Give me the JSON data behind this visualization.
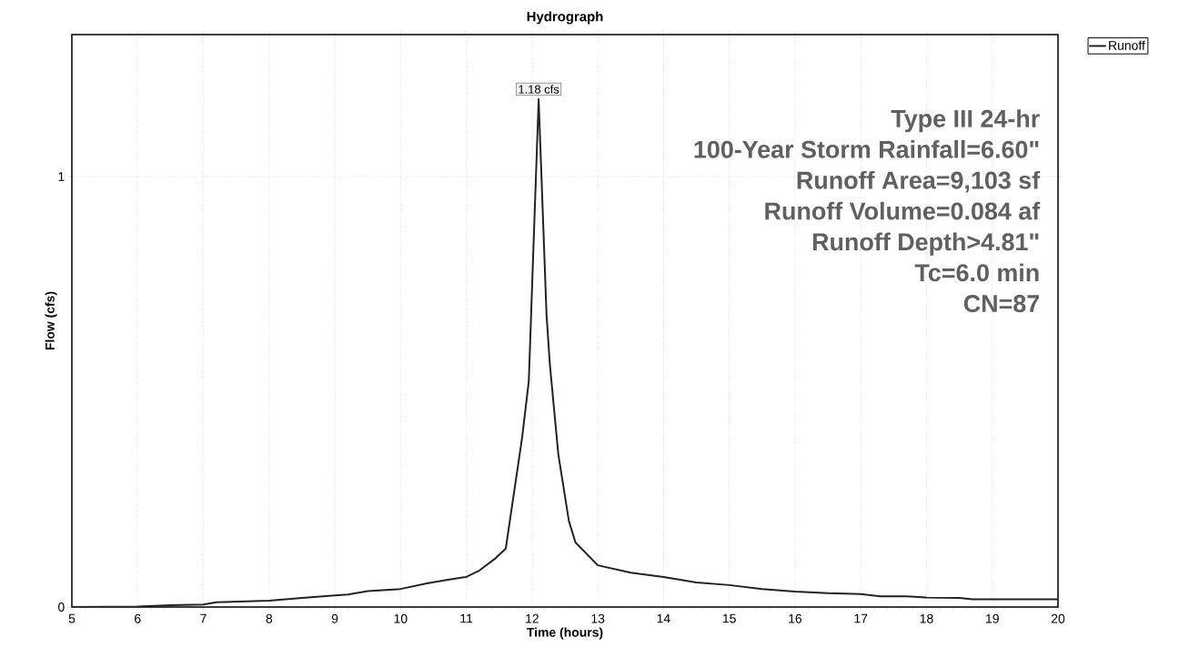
{
  "chart_data": {
    "type": "line",
    "title": "Hydrograph",
    "xlabel": "Time  (hours)",
    "ylabel": "Flow  (cfs)",
    "x": [
      5,
      6,
      6.5,
      7,
      7.2,
      8,
      8.5,
      9,
      9.2,
      9.5,
      10,
      10.4,
      10.7,
      11,
      11.2,
      11.45,
      11.6,
      11.85,
      11.95,
      12.1,
      12.22,
      12.27,
      12.4,
      12.56,
      12.66,
      13,
      13.5,
      14,
      14.5,
      15,
      15.5,
      16,
      16.5,
      17,
      17.3,
      17.7,
      18,
      18.5,
      18.7,
      20
    ],
    "series": [
      {
        "name": "Runoff",
        "color": "#222222",
        "values": [
          0,
          0.001,
          0.004,
          0.006,
          0.011,
          0.015,
          0.021,
          0.027,
          0.029,
          0.037,
          0.042,
          0.055,
          0.063,
          0.07,
          0.085,
          0.114,
          0.136,
          0.395,
          0.524,
          1.18,
          0.679,
          0.565,
          0.354,
          0.2,
          0.15,
          0.097,
          0.08,
          0.07,
          0.057,
          0.051,
          0.042,
          0.036,
          0.032,
          0.03,
          0.025,
          0.025,
          0.022,
          0.021,
          0.018,
          0.018
        ]
      }
    ],
    "xlim": [
      5,
      20
    ],
    "xticks": [
      5,
      6,
      7,
      8,
      9,
      10,
      11,
      12,
      13,
      14,
      15,
      16,
      17,
      18,
      19,
      20
    ],
    "ylim": [
      0,
      1.33
    ],
    "yticks": [
      0,
      1
    ],
    "grid": true,
    "legend": "top right",
    "marker": "none",
    "line_style": "solid",
    "annotations": [
      {
        "text": "1.18 cfs",
        "x": 12.1,
        "y": 1.18
      },
      "Type III 24-hr",
      "100-Year Storm Rainfall=6.60\"",
      "Runoff Area=9,103 sf",
      "Runoff Volume=0.084 af",
      "Runoff Depth>4.81\"",
      "Tc=6.0 min",
      "CN=87"
    ]
  }
}
